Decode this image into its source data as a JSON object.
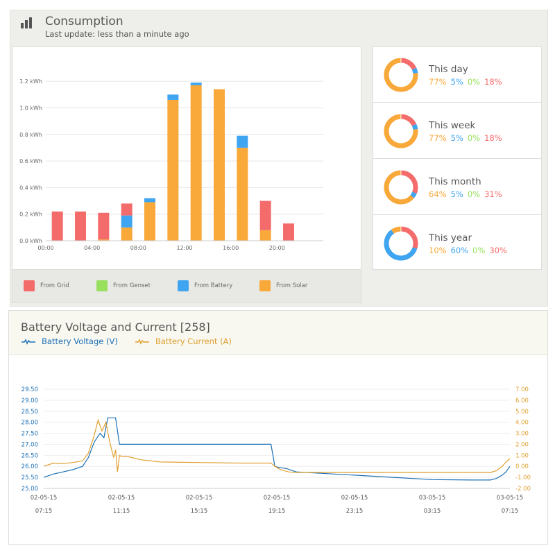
{
  "consumption": {
    "title": "Consumption",
    "subtitle": "Last update: less than a minute ago",
    "legend": [
      {
        "label": "From Grid",
        "color": "#f46b6b"
      },
      {
        "label": "From Genset",
        "color": "#98e05e"
      },
      {
        "label": "From Battery",
        "color": "#3fa5f0"
      },
      {
        "label": "From Solar",
        "color": "#f9a83a"
      }
    ]
  },
  "chart_data": [
    {
      "type": "bar",
      "stacked": true,
      "title": "",
      "ylim": [
        0,
        1.3
      ],
      "yticks": [
        0,
        0.2,
        0.4,
        0.6,
        0.8,
        1.0,
        1.2
      ],
      "ytick_labels": [
        "0.0 kWh",
        "0.2 kWh",
        "0.4 kWh",
        "0.6 kWh",
        "0.8 kWh",
        "1.0 kWh",
        "1.2 kWh"
      ],
      "xtick_labels": [
        "00:00",
        "04:00",
        "08:00",
        "12:00",
        "16:00",
        "20:00"
      ],
      "categories": [
        "00:00",
        "02:00",
        "04:00",
        "06:00",
        "08:00",
        "10:00",
        "12:00",
        "14:00",
        "16:00",
        "18:00",
        "20:00",
        "22:00"
      ],
      "series": [
        {
          "name": "From Solar",
          "color": "#f9a83a",
          "values": [
            0,
            0,
            0.01,
            0.1,
            0.29,
            1.06,
            1.17,
            1.14,
            0.7,
            0.08,
            0,
            0
          ]
        },
        {
          "name": "From Genset",
          "color": "#98e05e",
          "values": [
            0,
            0,
            0,
            0,
            0,
            0,
            0,
            0,
            0,
            0,
            0,
            0
          ]
        },
        {
          "name": "From Battery",
          "color": "#3fa5f0",
          "values": [
            0,
            0,
            0,
            0.09,
            0.03,
            0.04,
            0.02,
            0,
            0.09,
            0,
            0,
            0
          ]
        },
        {
          "name": "From Grid",
          "color": "#f46b6b",
          "values": [
            0.22,
            0.22,
            0.2,
            0.09,
            0,
            0,
            0,
            0,
            0,
            0.22,
            0.13,
            0
          ]
        }
      ]
    },
    {
      "type": "line",
      "title": "Battery Voltage and Current [258]",
      "ylim": [
        25.0,
        29.5
      ],
      "y2lim": [
        -2.0,
        7.0
      ],
      "yticks": [
        "25.00",
        "25.50",
        "26.00",
        "26.50",
        "27.00",
        "27.50",
        "28.00",
        "28.50",
        "29.00",
        "29.50"
      ],
      "y2ticks": [
        "-2.00",
        "-1.00",
        "0.00",
        "1.00",
        "2.00",
        "3.00",
        "4.00",
        "5.00",
        "6.00",
        "7.00"
      ],
      "xtick_dates": [
        "02-05-15",
        "02-05-15",
        "02-05-15",
        "02-05-15",
        "02-05-15",
        "03-05-15",
        "03-05-15"
      ],
      "xtick_times": [
        "07:15",
        "11:15",
        "15:15",
        "19:15",
        "23:15",
        "03:15",
        "07:15"
      ],
      "x_hours": [
        0,
        24
      ],
      "series": [
        {
          "name": "Battery Voltage (V)",
          "color": "#1a6fb5",
          "axis": "left",
          "x": [
            0,
            0.5,
            1,
            1.5,
            2,
            2.3,
            2.6,
            2.9,
            3.1,
            3.3,
            3.5,
            3.7,
            3.9,
            4.0,
            4.2,
            4.3,
            4.5,
            5,
            6,
            7,
            8,
            9,
            10,
            11,
            11.7,
            11.9,
            12.1,
            12.5,
            13,
            14,
            16,
            18,
            20,
            22,
            23,
            23.3,
            23.6,
            23.8,
            24
          ],
          "y": [
            25.5,
            25.65,
            25.75,
            25.85,
            26.0,
            26.4,
            27.1,
            27.5,
            27.3,
            28.2,
            28.2,
            28.2,
            27.0,
            27.0,
            27.0,
            27.0,
            27.0,
            27.0,
            27.0,
            27.0,
            27.0,
            27.0,
            27.0,
            27.0,
            27.0,
            26.0,
            25.95,
            25.9,
            25.75,
            25.7,
            25.6,
            25.5,
            25.4,
            25.38,
            25.38,
            25.45,
            25.6,
            25.75,
            26.0
          ]
        },
        {
          "name": "Battery Current (A)",
          "color": "#e0a030",
          "axis": "right",
          "x": [
            0,
            0.5,
            1,
            1.5,
            2,
            2.3,
            2.6,
            2.8,
            3.0,
            3.2,
            3.4,
            3.6,
            3.7,
            3.8,
            3.9,
            4.0,
            4.3,
            5,
            6,
            8,
            10,
            11,
            11.7,
            11.9,
            12.2,
            12.6,
            13,
            14,
            16,
            18,
            20,
            22,
            23,
            23.3,
            23.6,
            23.8,
            24
          ],
          "y": [
            0.0,
            0.3,
            0.25,
            0.35,
            0.5,
            1.2,
            2.8,
            4.2,
            3.2,
            4.0,
            2.2,
            0.8,
            1.5,
            -0.5,
            1.0,
            0.9,
            0.9,
            0.6,
            0.4,
            0.35,
            0.3,
            0.3,
            0.3,
            0.0,
            -0.3,
            -0.5,
            -0.55,
            -0.55,
            -0.55,
            -0.55,
            -0.55,
            -0.55,
            -0.55,
            -0.4,
            0.0,
            0.4,
            0.7
          ]
        }
      ]
    }
  ],
  "summary": [
    {
      "title": "This day",
      "values": [
        {
          "text": "77%",
          "value": 77,
          "color": "#f9a83a"
        },
        {
          "text": "5%",
          "value": 5,
          "color": "#3fa5f0"
        },
        {
          "text": "0%",
          "value": 0,
          "color": "#98e05e"
        },
        {
          "text": "18%",
          "value": 18,
          "color": "#f46b6b"
        }
      ]
    },
    {
      "title": "This week",
      "values": [
        {
          "text": "77%",
          "value": 77,
          "color": "#f9a83a"
        },
        {
          "text": "5%",
          "value": 5,
          "color": "#3fa5f0"
        },
        {
          "text": "0%",
          "value": 0,
          "color": "#98e05e"
        },
        {
          "text": "18%",
          "value": 18,
          "color": "#f46b6b"
        }
      ]
    },
    {
      "title": "This month",
      "values": [
        {
          "text": "64%",
          "value": 64,
          "color": "#f9a83a"
        },
        {
          "text": "5%",
          "value": 5,
          "color": "#3fa5f0"
        },
        {
          "text": "0%",
          "value": 0,
          "color": "#98e05e"
        },
        {
          "text": "31%",
          "value": 31,
          "color": "#f46b6b"
        }
      ]
    },
    {
      "title": "This year",
      "values": [
        {
          "text": "10%",
          "value": 10,
          "color": "#f9a83a"
        },
        {
          "text": "60%",
          "value": 60,
          "color": "#3fa5f0"
        },
        {
          "text": "0%",
          "value": 0,
          "color": "#98e05e"
        },
        {
          "text": "30%",
          "value": 30,
          "color": "#f46b6b"
        }
      ]
    }
  ],
  "battery": {
    "title": "Battery Voltage and Current [258]",
    "legend_voltage": "Battery Voltage (V)",
    "legend_current": "Battery Current (A)",
    "voltage_color": "#1a6fb5",
    "current_color": "#e0a030"
  },
  "icons": {
    "header": "bar-chart-icon"
  }
}
